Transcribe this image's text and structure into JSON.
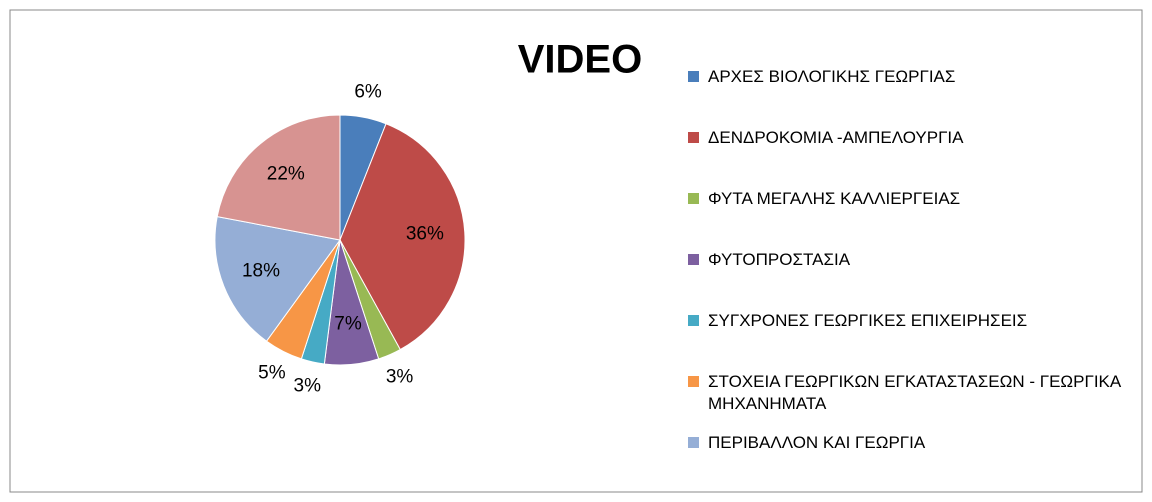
{
  "chart_data": {
    "type": "pie",
    "title": "VIDEO",
    "categories": [
      "ΑΡΧΕΣ ΒΙΟΛΟΓΙΚΗΣ ΓΕΩΡΓΙΑΣ",
      "ΔΕΝΔΡΟΚΟΜΙΑ  -ΑΜΠΕΛΟΥΡΓΙΑ",
      "ΦΥΤΑ ΜΕΓΑΛΗΣ ΚΑΛΛΙΕΡΓΕΙΑΣ",
      "ΦΥΤΟΠΡΟΣΤΑΣΙΑ",
      "ΣΥΓΧΡΟΝΕΣ ΓΕΩΡΓΙΚΕΣ ΕΠΙΧΕΙΡΗΣΕΙΣ",
      "ΣΤΟΧΕΙΑ ΓΕΩΡΓΙΚΩΝ ΕΓΚΑΤΑΣΤΑΣΕΩΝ - ΓΕΩΡΓΙΚΑ ΜΗΧΑΝΗΜΑΤΑ",
      "ΠΕΡΙΒΑΛΛΟΝ ΚΑΙ ΓΕΩΡΓΙΑ",
      null
    ],
    "values": [
      6,
      36,
      3,
      7,
      3,
      5,
      18,
      22
    ],
    "value_labels": [
      "6%",
      "36%",
      "3%",
      "7%",
      "3%",
      "5%",
      "18%",
      "22%"
    ],
    "colors": [
      "#4a7ebb",
      "#be4b48",
      "#98b954",
      "#7d60a0",
      "#46aac5",
      "#f79646",
      "#95aed6",
      "#d79391"
    ],
    "legend": "right"
  }
}
